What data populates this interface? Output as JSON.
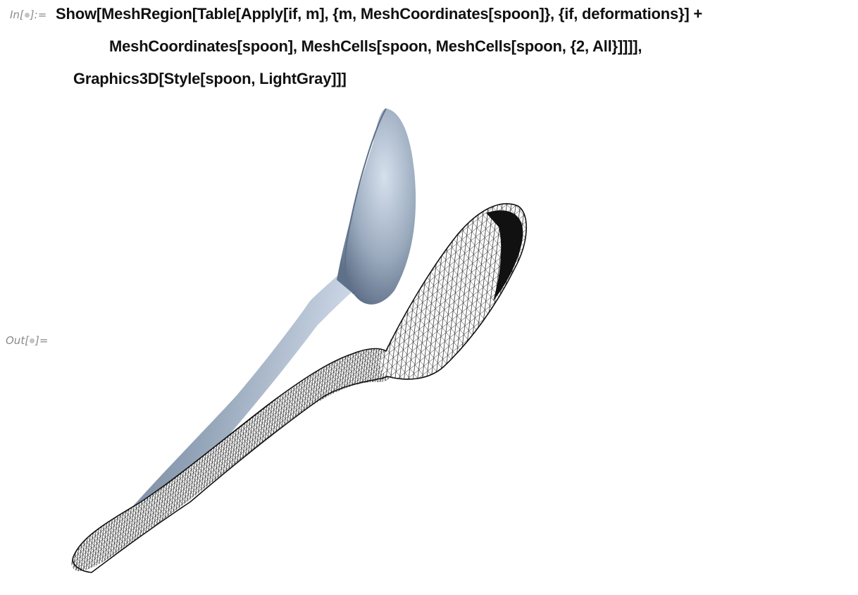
{
  "input_cell": {
    "label_prefix": "In[",
    "label_suffix": "]:=",
    "lines": [
      "Show[MeshRegion[Table[Apply[if, m], {m, MeshCoordinates[spoon]}, {if, deformations}] +",
      "MeshCoordinates[spoon], MeshCells[spoon, MeshCells[spoon, {2, All}]]]],",
      "Graphics3D[Style[spoon, LightGray]]]"
    ]
  },
  "output_cell": {
    "label_prefix": "Out[",
    "label_suffix": "]="
  },
  "colors": {
    "text": "#111111",
    "cell_label": "#8a8a8a",
    "spoon_surface": "#9aaabd",
    "spoon_highlight": "#d6e0ee",
    "spoon_shadow": "#5f7089",
    "mesh_fill": "#ffffff",
    "mesh_line": "#111111"
  }
}
